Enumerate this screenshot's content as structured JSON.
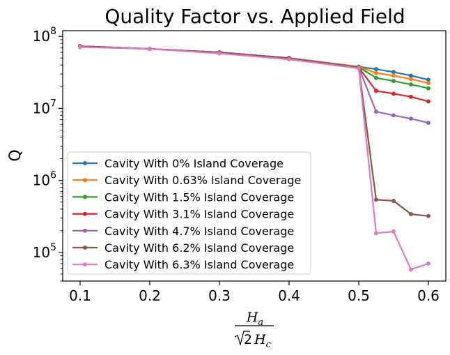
{
  "chart_data": {
    "type": "line",
    "title": "Quality Factor vs. Applied Field",
    "ylabel": "Q",
    "xlabel": {
      "numerator": "H",
      "numerator_sub": "a",
      "denominator_factor": "2",
      "denominator": "H",
      "denominator_sub": "c"
    },
    "yscale": "log",
    "xlim": [
      0.075,
      0.625
    ],
    "ylim": [
      40000,
      120000000
    ],
    "xticks": [
      "0.1",
      "0.2",
      "0.3",
      "0.4",
      "0.5",
      "0.6"
    ],
    "yticks": [
      {
        "value": 100000000,
        "base": "10",
        "exp": "8"
      },
      {
        "value": 10000000,
        "base": "10",
        "exp": "7"
      },
      {
        "value": 1000000,
        "base": "10",
        "exp": "6"
      },
      {
        "value": 100000,
        "base": "10",
        "exp": "5"
      }
    ],
    "legend_position": "lower-left",
    "x": [
      0.1,
      0.2,
      0.3,
      0.4,
      0.5,
      0.525,
      0.55,
      0.575,
      0.6
    ],
    "series": [
      {
        "name": "Cavity With 0% Island Coverage",
        "color": "#1f77b4",
        "values": [
          73000000,
          67000000,
          60000000,
          50000000,
          38000000,
          35000000,
          32000000,
          28500000,
          25000000
        ]
      },
      {
        "name": "Cavity With 0.63% Island Coverage",
        "color": "#ff7f0e",
        "values": [
          73000000,
          67000000,
          60000000,
          50000000,
          38000000,
          31000000,
          28500000,
          25500000,
          22500000
        ]
      },
      {
        "name": "Cavity With 1.5% Island Coverage",
        "color": "#2ca02c",
        "values": [
          73000000,
          67000000,
          60000000,
          50000000,
          37500000,
          26500000,
          24000000,
          21500000,
          19000000
        ]
      },
      {
        "name": "Cavity With 3.1% Island Coverage",
        "color": "#d62728",
        "values": [
          73000000,
          67000000,
          60000000,
          50000000,
          37000000,
          17500000,
          16000000,
          14500000,
          12500000
        ]
      },
      {
        "name": "Cavity With 4.7% Island Coverage",
        "color": "#9467bd",
        "values": [
          73000000,
          67000000,
          60000000,
          50000000,
          37000000,
          9000000,
          8000000,
          7200000,
          6300000
        ]
      },
      {
        "name": "Cavity With 6.2% Island Coverage",
        "color": "#8c564b",
        "values": [
          73000000,
          67000000,
          60000000,
          50000000,
          37000000,
          540000,
          520000,
          340000,
          320000
        ]
      },
      {
        "name": "Cavity With 6.3% Island Coverage",
        "color": "#e377c2",
        "values": [
          71000000,
          67000000,
          58000000,
          48000000,
          36000000,
          185000,
          195000,
          58000,
          70000
        ]
      }
    ]
  }
}
